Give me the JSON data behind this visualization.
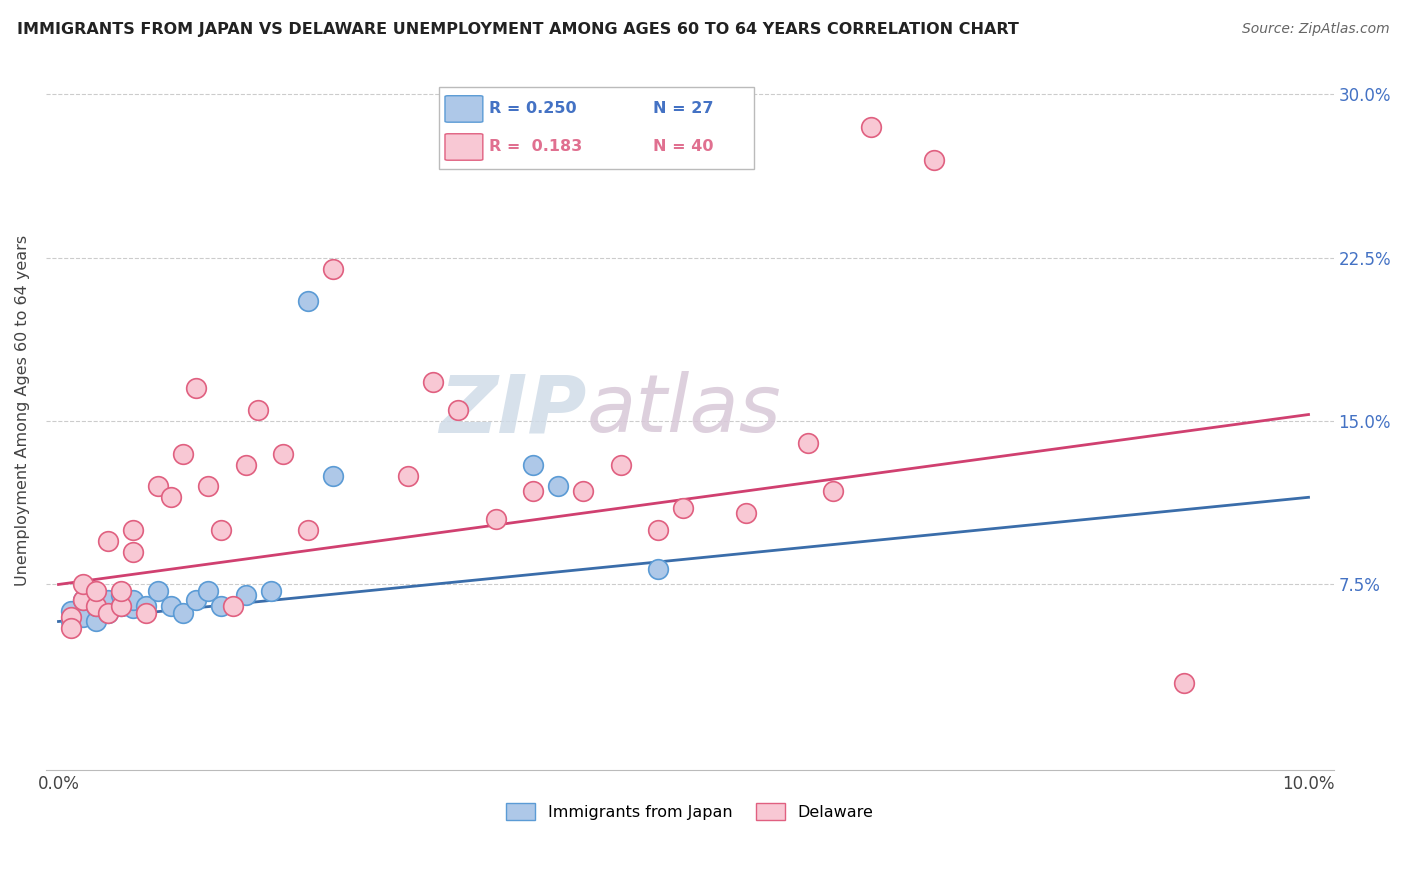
{
  "title": "IMMIGRANTS FROM JAPAN VS DELAWARE UNEMPLOYMENT AMONG AGES 60 TO 64 YEARS CORRELATION CHART",
  "source": "Source: ZipAtlas.com",
  "ylabel": "Unemployment Among Ages 60 to 64 years",
  "yticks_labels": [
    "7.5%",
    "15.0%",
    "22.5%",
    "30.0%"
  ],
  "ytick_values": [
    0.075,
    0.15,
    0.225,
    0.3
  ],
  "legend_label1": "Immigrants from Japan",
  "legend_label2": "Delaware",
  "legend_r1": "R = 0.250",
  "legend_n1": "N = 27",
  "legend_r2": "R =  0.183",
  "legend_n2": "N = 40",
  "color_blue_fill": "#aec8e8",
  "color_blue_edge": "#5b9bd5",
  "color_pink_fill": "#f8c8d4",
  "color_pink_edge": "#e06080",
  "color_blue_line": "#3a6daa",
  "color_pink_line": "#d04070",
  "color_blue_legend": "#4472c4",
  "color_pink_legend": "#e07090",
  "watermark_zip": "ZIP",
  "watermark_atlas": "atlas",
  "japan_x": [
    0.001,
    0.001,
    0.002,
    0.002,
    0.003,
    0.003,
    0.003,
    0.004,
    0.004,
    0.005,
    0.005,
    0.006,
    0.006,
    0.007,
    0.008,
    0.009,
    0.01,
    0.011,
    0.012,
    0.013,
    0.015,
    0.017,
    0.02,
    0.022,
    0.038,
    0.04,
    0.048
  ],
  "japan_y": [
    0.058,
    0.063,
    0.06,
    0.068,
    0.058,
    0.065,
    0.07,
    0.062,
    0.068,
    0.065,
    0.07,
    0.064,
    0.068,
    0.065,
    0.072,
    0.065,
    0.062,
    0.068,
    0.072,
    0.065,
    0.07,
    0.072,
    0.205,
    0.125,
    0.13,
    0.12,
    0.082
  ],
  "delaware_x": [
    0.001,
    0.001,
    0.002,
    0.002,
    0.003,
    0.003,
    0.004,
    0.004,
    0.005,
    0.005,
    0.006,
    0.006,
    0.007,
    0.008,
    0.009,
    0.01,
    0.011,
    0.012,
    0.013,
    0.014,
    0.015,
    0.016,
    0.018,
    0.02,
    0.022,
    0.028,
    0.03,
    0.032,
    0.035,
    0.038,
    0.042,
    0.045,
    0.048,
    0.05,
    0.055,
    0.06,
    0.062,
    0.065,
    0.07,
    0.09
  ],
  "delaware_y": [
    0.06,
    0.055,
    0.068,
    0.075,
    0.065,
    0.072,
    0.095,
    0.062,
    0.065,
    0.072,
    0.09,
    0.1,
    0.062,
    0.12,
    0.115,
    0.135,
    0.165,
    0.12,
    0.1,
    0.065,
    0.13,
    0.155,
    0.135,
    0.1,
    0.22,
    0.125,
    0.168,
    0.155,
    0.105,
    0.118,
    0.118,
    0.13,
    0.1,
    0.11,
    0.108,
    0.14,
    0.118,
    0.285,
    0.27,
    0.03
  ],
  "japan_trend_x": [
    0.0,
    0.1
  ],
  "japan_trend_y": [
    0.058,
    0.115
  ],
  "delaware_trend_x": [
    0.0,
    0.1
  ],
  "delaware_trend_y": [
    0.075,
    0.153
  ],
  "xlim": [
    -0.001,
    0.102
  ],
  "ylim": [
    -0.01,
    0.32
  ]
}
